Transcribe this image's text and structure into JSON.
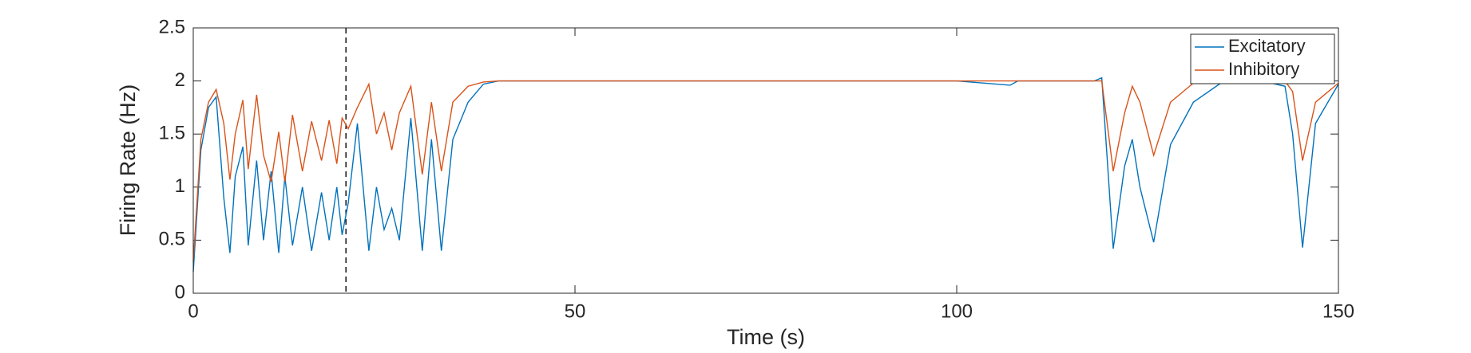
{
  "chart_data": {
    "type": "line",
    "xlabel": "Time (s)",
    "ylabel": "Firing Rate (Hz)",
    "x": [
      0,
      1,
      2,
      3,
      4,
      4.8,
      5.5,
      6.5,
      7.2,
      8.3,
      9.2,
      10.2,
      11.2,
      12,
      13,
      14.3,
      15.5,
      16.8,
      17.8,
      18.8,
      19.5,
      20.3,
      21.5,
      23,
      24,
      25,
      26,
      27,
      28.5,
      30,
      31.2,
      32.5,
      34,
      36,
      38,
      40,
      60,
      80,
      100,
      107,
      108,
      118,
      119,
      120.5,
      122,
      123,
      124,
      125.8,
      128,
      131,
      135,
      140,
      143,
      144,
      145.3,
      147,
      150
    ],
    "series": [
      {
        "name": "Excitatory",
        "color": "#0072bd",
        "values": [
          0.2,
          1.35,
          1.75,
          1.85,
          0.9,
          0.38,
          1.1,
          1.38,
          0.45,
          1.25,
          0.5,
          1.15,
          0.38,
          1.1,
          0.45,
          1.0,
          0.4,
          0.95,
          0.5,
          1.0,
          0.55,
          0.85,
          1.6,
          0.4,
          1.0,
          0.6,
          0.8,
          0.5,
          1.65,
          0.4,
          1.45,
          0.4,
          1.45,
          1.8,
          1.97,
          2,
          2,
          2,
          2,
          1.96,
          2,
          2,
          2.03,
          0.42,
          1.2,
          1.45,
          1.0,
          0.48,
          1.4,
          1.8,
          2,
          2,
          1.95,
          1.5,
          0.43,
          1.6,
          1.97
        ]
      },
      {
        "name": "Inhibitory",
        "color": "#d95319",
        "values": [
          0.3,
          1.45,
          1.8,
          1.92,
          1.6,
          1.07,
          1.5,
          1.82,
          1.17,
          1.87,
          1.3,
          1.05,
          1.52,
          1.05,
          1.68,
          1.15,
          1.62,
          1.25,
          1.63,
          1.22,
          1.65,
          1.55,
          1.75,
          1.97,
          1.5,
          1.7,
          1.35,
          1.7,
          1.95,
          1.12,
          1.8,
          1.15,
          1.8,
          1.95,
          1.99,
          2,
          2,
          2,
          2,
          2,
          2,
          2,
          2,
          1.15,
          1.7,
          1.95,
          1.8,
          1.3,
          1.8,
          1.98,
          2,
          2,
          2,
          1.9,
          1.25,
          1.8,
          1.98
        ]
      }
    ],
    "vline_x": 20,
    "xlim": [
      0,
      150
    ],
    "xticks": [
      0,
      50,
      100,
      150
    ],
    "ylim": [
      0,
      2.5
    ],
    "yticks": [
      0,
      0.5,
      1,
      1.5,
      2,
      2.5
    ],
    "grid": false,
    "legend": "upper right"
  }
}
